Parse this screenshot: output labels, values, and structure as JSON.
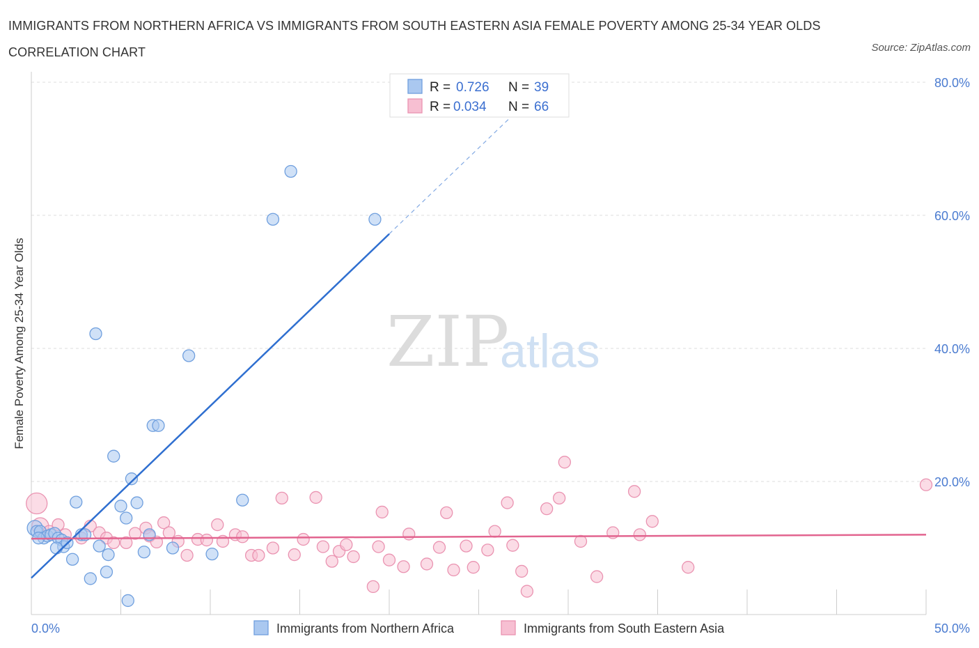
{
  "header": {
    "title": "IMMIGRANTS FROM NORTHERN AFRICA VS IMMIGRANTS FROM SOUTH EASTERN ASIA FEMALE POVERTY AMONG 25-34 YEAR OLDS CORRELATION CHART",
    "source": "Source: ZipAtlas.com"
  },
  "watermark": {
    "zip": "ZIP",
    "atlas": "atlas"
  },
  "colors": {
    "blue_fill": "#aac8f0",
    "blue_stroke": "#6f9fde",
    "blue_line": "#2f6fd0",
    "pink_fill": "#f7bfd2",
    "pink_stroke": "#ea93b1",
    "pink_line": "#e2648f",
    "grid": "#dddddd",
    "axis": "#cccccc",
    "tick_text": "#4a7bd0"
  },
  "chart_data": {
    "type": "scatter",
    "title": "IMMIGRANTS FROM NORTHERN AFRICA VS IMMIGRANTS FROM SOUTH EASTERN ASIA FEMALE POVERTY AMONG 25-34 YEAR OLDS CORRELATION CHART",
    "xlabel": "",
    "ylabel": "Female Poverty Among 25-34 Year Olds",
    "xlim": [
      0,
      50
    ],
    "ylim": [
      0,
      80
    ],
    "x_tick_labels": [
      "0.0%",
      "50.0%"
    ],
    "y_ticks": [
      20,
      40,
      60,
      80
    ],
    "y_tick_labels": [
      "20.0%",
      "40.0%",
      "60.0%",
      "80.0%"
    ],
    "grid": true,
    "legend_position": "bottom",
    "stats": [
      {
        "r_label": "R =",
        "r": "0.726",
        "n_label": "N =",
        "n": "39"
      },
      {
        "r_label": "R =",
        "r": "0.034",
        "n_label": "N =",
        "n": "66"
      }
    ],
    "series": [
      {
        "name": "Immigrants from Northern Africa",
        "color": "blue",
        "trend": {
          "x0": 0,
          "y0": 5.5,
          "x1": 20,
          "y1": 57.2,
          "x_dash_end": 27.5
        },
        "points": [
          [
            0.2,
            13.0
          ],
          [
            0.3,
            12.5
          ],
          [
            0.5,
            12.5
          ],
          [
            0.7,
            11.5
          ],
          [
            0.9,
            11.8
          ],
          [
            1.1,
            12.0
          ],
          [
            1.3,
            12.2
          ],
          [
            1.5,
            11.5
          ],
          [
            1.7,
            11.2
          ],
          [
            1.8,
            10.2
          ],
          [
            2.0,
            10.8
          ],
          [
            2.3,
            8.3
          ],
          [
            2.5,
            16.9
          ],
          [
            2.8,
            12.0
          ],
          [
            3.0,
            12.0
          ],
          [
            3.3,
            5.4
          ],
          [
            3.6,
            42.2
          ],
          [
            3.8,
            10.3
          ],
          [
            4.2,
            6.4
          ],
          [
            4.3,
            9.0
          ],
          [
            4.6,
            23.8
          ],
          [
            5.0,
            16.3
          ],
          [
            5.3,
            14.5
          ],
          [
            5.4,
            2.1
          ],
          [
            5.6,
            20.4
          ],
          [
            5.9,
            16.8
          ],
          [
            6.3,
            9.4
          ],
          [
            6.6,
            12.0
          ],
          [
            6.8,
            28.4
          ],
          [
            7.1,
            28.4
          ],
          [
            7.9,
            10.0
          ],
          [
            8.8,
            38.9
          ],
          [
            10.1,
            9.1
          ],
          [
            11.8,
            17.2
          ],
          [
            13.5,
            59.4
          ],
          [
            14.5,
            66.6
          ],
          [
            19.2,
            59.4
          ],
          [
            0.4,
            11.5
          ],
          [
            1.4,
            10.0
          ]
        ]
      },
      {
        "name": "Immigrants from South Eastern Asia",
        "color": "pink",
        "trend": {
          "x0": 0,
          "y0": 11.4,
          "x1": 50,
          "y1": 12.0
        },
        "points": [
          [
            0.3,
            16.7
          ],
          [
            0.5,
            13.3
          ],
          [
            1.0,
            12.5
          ],
          [
            1.5,
            13.5
          ],
          [
            1.9,
            12.0
          ],
          [
            2.8,
            11.5
          ],
          [
            3.3,
            13.3
          ],
          [
            3.8,
            12.3
          ],
          [
            4.2,
            11.5
          ],
          [
            4.6,
            10.8
          ],
          [
            5.3,
            10.8
          ],
          [
            5.8,
            12.2
          ],
          [
            6.4,
            13.0
          ],
          [
            6.6,
            11.8
          ],
          [
            7.0,
            10.9
          ],
          [
            7.4,
            13.8
          ],
          [
            7.7,
            12.3
          ],
          [
            8.2,
            11.0
          ],
          [
            8.7,
            8.9
          ],
          [
            9.3,
            11.3
          ],
          [
            9.8,
            11.2
          ],
          [
            10.4,
            13.5
          ],
          [
            10.7,
            11.0
          ],
          [
            11.4,
            12.0
          ],
          [
            11.8,
            11.7
          ],
          [
            12.3,
            8.9
          ],
          [
            12.7,
            8.9
          ],
          [
            13.5,
            10.0
          ],
          [
            14.0,
            17.5
          ],
          [
            14.7,
            9.0
          ],
          [
            15.2,
            11.3
          ],
          [
            15.9,
            17.6
          ],
          [
            16.3,
            10.2
          ],
          [
            16.8,
            8.0
          ],
          [
            17.2,
            9.5
          ],
          [
            17.6,
            10.5
          ],
          [
            18.0,
            8.7
          ],
          [
            19.1,
            4.2
          ],
          [
            19.4,
            10.2
          ],
          [
            19.6,
            15.4
          ],
          [
            20.0,
            8.2
          ],
          [
            20.8,
            7.2
          ],
          [
            21.1,
            12.1
          ],
          [
            22.1,
            7.6
          ],
          [
            22.8,
            10.1
          ],
          [
            23.2,
            15.3
          ],
          [
            23.6,
            6.7
          ],
          [
            24.3,
            10.3
          ],
          [
            24.7,
            7.1
          ],
          [
            25.5,
            9.7
          ],
          [
            25.9,
            12.5
          ],
          [
            26.6,
            16.8
          ],
          [
            26.9,
            10.4
          ],
          [
            27.4,
            6.5
          ],
          [
            27.7,
            3.5
          ],
          [
            28.8,
            15.9
          ],
          [
            29.5,
            17.5
          ],
          [
            29.8,
            22.9
          ],
          [
            30.7,
            11.0
          ],
          [
            31.6,
            5.7
          ],
          [
            32.5,
            12.3
          ],
          [
            33.7,
            18.5
          ],
          [
            34.0,
            12.0
          ],
          [
            34.7,
            14.0
          ],
          [
            36.7,
            7.1
          ],
          [
            50.0,
            19.5
          ]
        ]
      }
    ]
  },
  "legend": {
    "items": [
      {
        "label": "Immigrants from Northern Africa"
      },
      {
        "label": "Immigrants from South Eastern Asia"
      }
    ]
  }
}
